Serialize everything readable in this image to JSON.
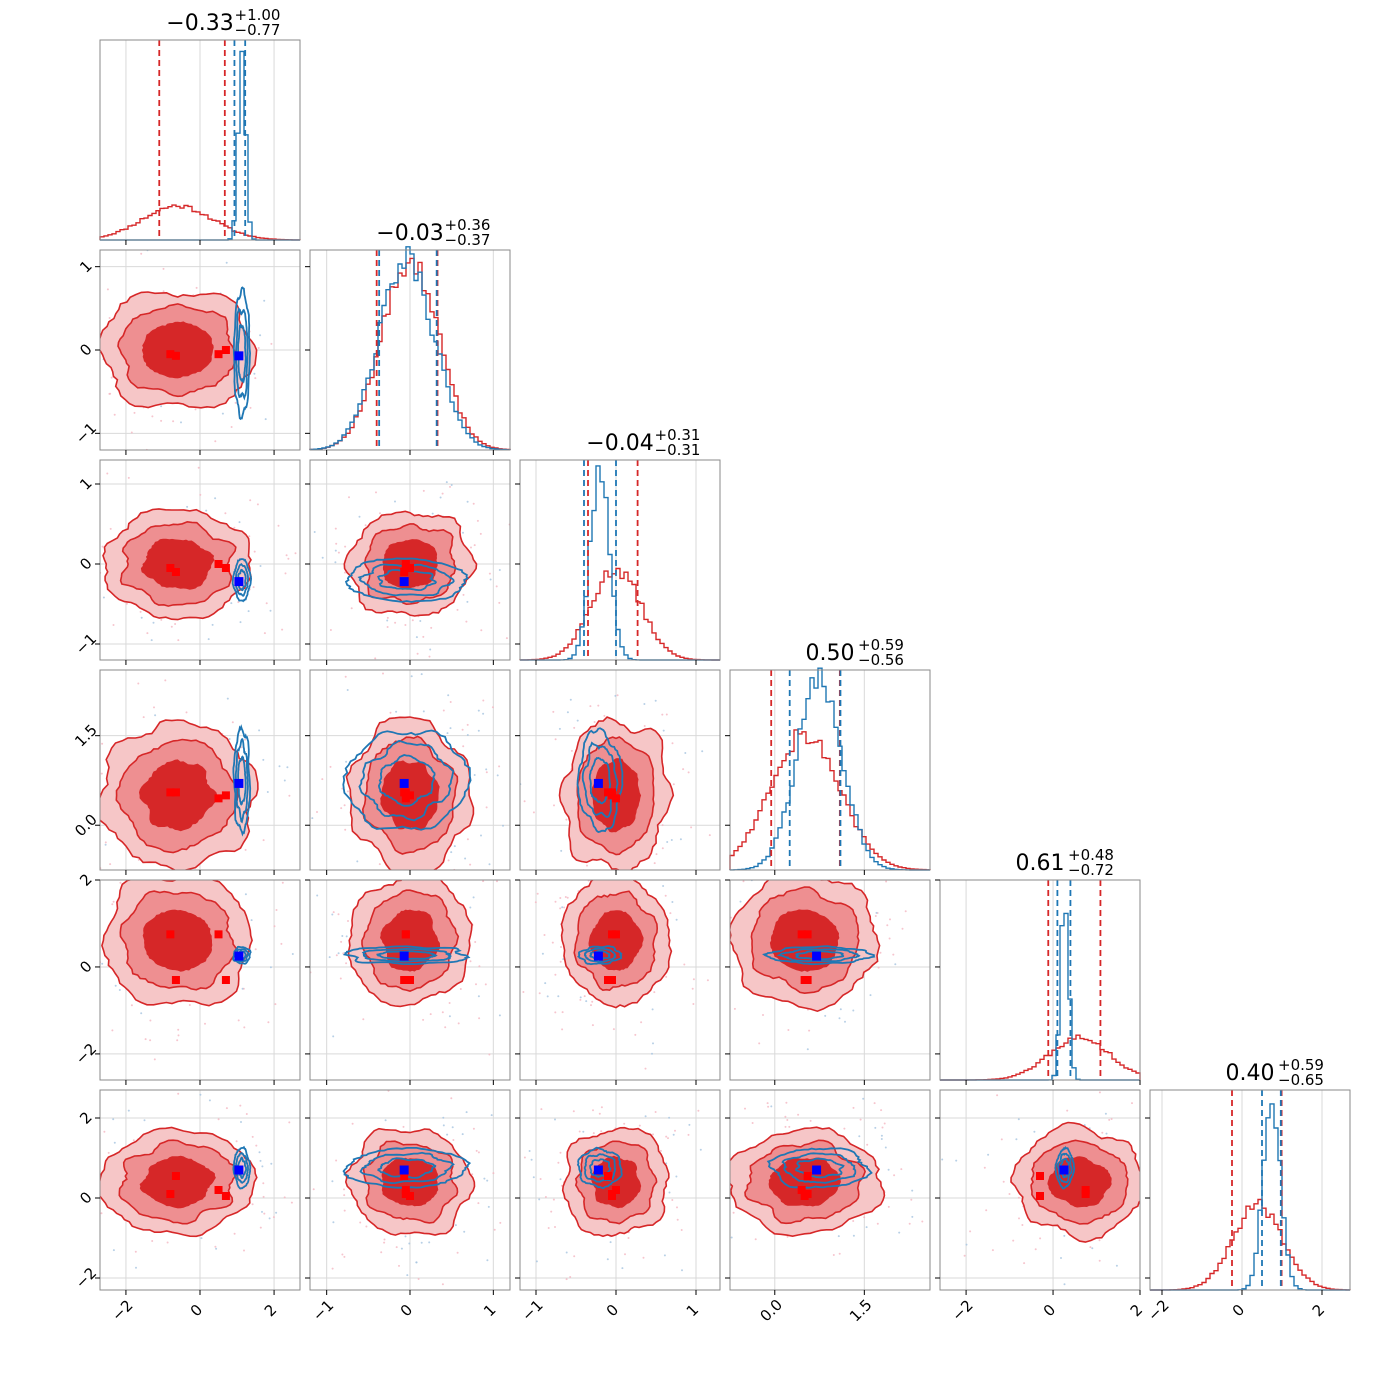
{
  "chart_data": {
    "type": "corner",
    "colors": {
      "prior": "#d62728",
      "posterior": "#1f77b4",
      "truth_prior": "#ff0000",
      "truth_post": "#0000ff",
      "grid": "#d9d9d9"
    },
    "params": [
      {
        "title_value": "−0.33",
        "plus": "+1.00",
        "minus": "−0.77",
        "range": [
          -2.7,
          2.7
        ],
        "ticks": [
          -2,
          0,
          2
        ],
        "tick_labels": [
          "−2",
          "0",
          "2"
        ],
        "prior": {
          "mean": -0.6,
          "sd": 0.95
        },
        "posterior": {
          "mean": 1.13,
          "sd": 0.1
        },
        "prior_q": [
          -1.1,
          0.67
        ],
        "post_q": [
          0.93,
          1.22
        ]
      },
      {
        "title_value": "−0.03",
        "plus": "+0.36",
        "minus": "−0.37",
        "range": [
          -1.2,
          1.2
        ],
        "ticks": [
          -1,
          0,
          1
        ],
        "tick_labels": [
          "−1",
          "0",
          "1"
        ],
        "prior": {
          "mean": 0.0,
          "sd": 0.34
        },
        "posterior": {
          "mean": -0.04,
          "sd": 0.33
        },
        "prior_q": [
          -0.4,
          0.33
        ],
        "post_q": [
          -0.37,
          0.32
        ]
      },
      {
        "title_value": "−0.04",
        "plus": "+0.31",
        "minus": "−0.31",
        "range": [
          -1.2,
          1.3
        ],
        "ticks": [
          -1,
          0,
          1
        ],
        "tick_labels": [
          "−1",
          "0",
          "1"
        ],
        "prior": {
          "mean": 0.0,
          "sd": 0.31
        },
        "posterior": {
          "mean": -0.2,
          "sd": 0.12
        },
        "prior_q": [
          -0.35,
          0.27
        ],
        "post_q": [
          -0.4,
          0.0
        ]
      },
      {
        "title_value": "0.50",
        "plus": "+0.59",
        "minus": "−0.56",
        "range": [
          -0.75,
          2.6
        ],
        "ticks": [
          0.0,
          1.5
        ],
        "tick_labels": [
          "0.0",
          "1.5"
        ],
        "prior": {
          "mean": 0.5,
          "sd": 0.58
        },
        "posterior": {
          "mean": 0.75,
          "sd": 0.38
        },
        "prior_q": [
          -0.06,
          1.09
        ],
        "post_q": [
          0.25,
          1.1
        ]
      },
      {
        "title_value": "0.61",
        "plus": "+0.48",
        "minus": "−0.72",
        "range": [
          -2.6,
          2.0
        ],
        "ticks": [
          -2,
          0,
          2
        ],
        "tick_labels": [
          "−2",
          "0",
          "2"
        ],
        "prior": {
          "mean": 0.61,
          "sd": 0.7
        },
        "posterior": {
          "mean": 0.27,
          "sd": 0.09
        },
        "prior_q": [
          -0.11,
          1.09
        ],
        "post_q": [
          0.1,
          0.4
        ]
      },
      {
        "title_value": "0.40",
        "plus": "+0.59",
        "minus": "−0.65",
        "range": [
          -2.3,
          2.7
        ],
        "ticks": [
          -2,
          0,
          2
        ],
        "tick_labels": [
          "−2",
          "0",
          "2"
        ],
        "prior": {
          "mean": 0.4,
          "sd": 0.62
        },
        "posterior": {
          "mean": 0.75,
          "sd": 0.22
        },
        "prior_q": [
          -0.25,
          0.99
        ],
        "post_q": [
          0.5,
          0.97
        ]
      }
    ],
    "truth_post": [
      1.05,
      -0.07,
      -0.22,
      0.7,
      0.25,
      0.7
    ],
    "truth_prior": [
      [
        -0.8,
        -0.05,
        -0.05,
        0.55,
        0.75,
        0.1
      ],
      [
        -0.65,
        -0.07,
        -0.1,
        0.55,
        -0.3,
        0.55
      ],
      [
        0.5,
        -0.05,
        0.0,
        0.45,
        0.75,
        0.2
      ],
      [
        0.7,
        0.0,
        -0.05,
        0.5,
        -0.3,
        0.05
      ]
    ]
  }
}
